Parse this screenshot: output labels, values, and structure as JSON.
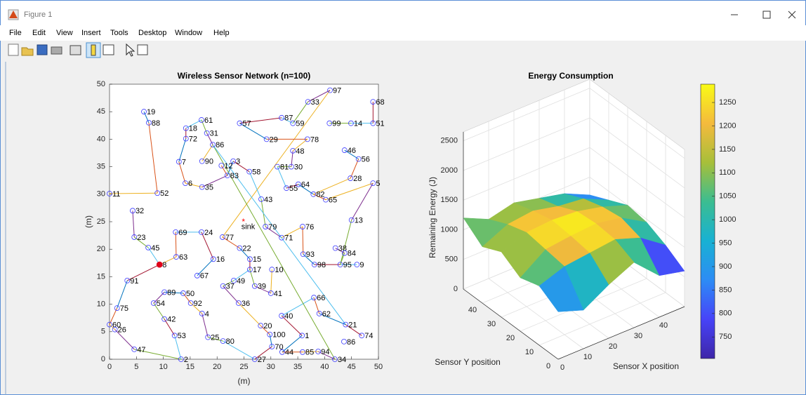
{
  "window": {
    "title": "Figure 1",
    "menu": [
      "File",
      "Edit",
      "View",
      "Insert",
      "Tools",
      "Desktop",
      "Window",
      "Help"
    ]
  },
  "chart_data": [
    {
      "type": "network",
      "title": "Wireless Sensor Network (n=100)",
      "xlabel": "(m)",
      "ylabel": "(m)",
      "xlim": [
        0,
        50
      ],
      "ylim": [
        0,
        50
      ],
      "xticks": [
        0,
        5,
        10,
        15,
        20,
        25,
        30,
        35,
        40,
        45,
        50
      ],
      "yticks": [
        0,
        5,
        10,
        15,
        20,
        25,
        30,
        35,
        40,
        45,
        50
      ],
      "node_color": "#3b3bff",
      "sink": {
        "label": "sink",
        "x": 24.9,
        "y": 24.9,
        "color": "#ff0000"
      },
      "nodes": [
        {
          "label": 19,
          "x": 6.4,
          "y": 45.0
        },
        {
          "label": 88,
          "x": 7.3,
          "y": 43.0
        },
        {
          "label": 61,
          "x": 17.1,
          "y": 43.5
        },
        {
          "label": 18,
          "x": 14.2,
          "y": 42.0
        },
        {
          "label": 31,
          "x": 18.1,
          "y": 41.1
        },
        {
          "label": 57,
          "x": 24.2,
          "y": 42.9
        },
        {
          "label": 87,
          "x": 32.0,
          "y": 43.9
        },
        {
          "label": 59,
          "x": 34.1,
          "y": 42.9
        },
        {
          "label": 33,
          "x": 36.9,
          "y": 46.8
        },
        {
          "label": 97,
          "x": 41.0,
          "y": 48.9
        },
        {
          "label": 68,
          "x": 49.0,
          "y": 46.8
        },
        {
          "label": 99,
          "x": 40.9,
          "y": 42.9
        },
        {
          "label": 14,
          "x": 44.9,
          "y": 42.9
        },
        {
          "label": 51,
          "x": 49.0,
          "y": 42.9
        },
        {
          "label": 72,
          "x": 14.2,
          "y": 40.1
        },
        {
          "label": 86,
          "x": 19.2,
          "y": 39.0
        },
        {
          "label": 29,
          "x": 29.2,
          "y": 40.0
        },
        {
          "label": 78,
          "x": 36.8,
          "y": 40.0
        },
        {
          "label": 48,
          "x": 34.1,
          "y": 37.9
        },
        {
          "label": 46,
          "x": 43.7,
          "y": 38.0
        },
        {
          "label": 56,
          "x": 46.3,
          "y": 36.4
        },
        {
          "label": 7,
          "x": 12.9,
          "y": 35.9
        },
        {
          "label": 90,
          "x": 17.2,
          "y": 36.0
        },
        {
          "label": 12,
          "x": 20.8,
          "y": 35.2
        },
        {
          "label": 3,
          "x": 23.0,
          "y": 36.0
        },
        {
          "label": 83,
          "x": 21.9,
          "y": 33.4
        },
        {
          "label": 58,
          "x": 26.0,
          "y": 34.1
        },
        {
          "label": 81,
          "x": 31.2,
          "y": 35.0
        },
        {
          "label": 30,
          "x": 33.8,
          "y": 35.0
        },
        {
          "label": 28,
          "x": 44.8,
          "y": 32.9
        },
        {
          "label": 5,
          "x": 49.0,
          "y": 32.0
        },
        {
          "label": 6,
          "x": 14.1,
          "y": 32.0
        },
        {
          "label": 35,
          "x": 17.2,
          "y": 31.3
        },
        {
          "label": 55,
          "x": 32.9,
          "y": 31.1
        },
        {
          "label": 64,
          "x": 35.1,
          "y": 31.8
        },
        {
          "label": 82,
          "x": 37.9,
          "y": 30.0
        },
        {
          "label": 65,
          "x": 40.2,
          "y": 29.0
        },
        {
          "label": 11,
          "x": 0,
          "y": 30.1
        },
        {
          "label": 52,
          "x": 8.9,
          "y": 30.2
        },
        {
          "label": 43,
          "x": 28.2,
          "y": 29.1
        },
        {
          "label": 32,
          "x": 4.3,
          "y": 27.0
        },
        {
          "label": 13,
          "x": 45.0,
          "y": 25.3
        },
        {
          "label": 79,
          "x": 29.0,
          "y": 24.1
        },
        {
          "label": 76,
          "x": 35.9,
          "y": 24.1
        },
        {
          "label": 69,
          "x": 12.3,
          "y": 23.1
        },
        {
          "label": 24,
          "x": 17.1,
          "y": 23.1
        },
        {
          "label": 77,
          "x": 21.0,
          "y": 22.2
        },
        {
          "label": 71,
          "x": 32.0,
          "y": 22.1
        },
        {
          "label": 23,
          "x": 4.6,
          "y": 22.2
        },
        {
          "label": 38,
          "x": 42.0,
          "y": 20.2
        },
        {
          "label": 84,
          "x": 43.7,
          "y": 19.3
        },
        {
          "label": 45,
          "x": 7.2,
          "y": 20.3
        },
        {
          "label": 22,
          "x": 24.2,
          "y": 20.2
        },
        {
          "label": 93,
          "x": 36.0,
          "y": 19.1
        },
        {
          "label": 63,
          "x": 12.4,
          "y": 18.6
        },
        {
          "label": 16,
          "x": 19.3,
          "y": 18.2
        },
        {
          "label": 15,
          "x": 26.1,
          "y": 18.2
        },
        {
          "label": 8,
          "x": 9.3,
          "y": 17.2,
          "color": "#e0001a"
        },
        {
          "label": 98,
          "x": 38.1,
          "y": 17.2
        },
        {
          "label": 95,
          "x": 42.9,
          "y": 17.2
        },
        {
          "label": 9,
          "x": 46.0,
          "y": 17.2
        },
        {
          "label": 17,
          "x": 26.1,
          "y": 16.3
        },
        {
          "label": 10,
          "x": 30.2,
          "y": 16.3
        },
        {
          "label": 67,
          "x": 16.3,
          "y": 15.2
        },
        {
          "label": 91,
          "x": 3.3,
          "y": 14.3
        },
        {
          "label": 49,
          "x": 23.1,
          "y": 14.3
        },
        {
          "label": 37,
          "x": 21.1,
          "y": 13.3
        },
        {
          "label": 39,
          "x": 27.0,
          "y": 13.3
        },
        {
          "label": 41,
          "x": 30.0,
          "y": 12.0
        },
        {
          "label": 89,
          "x": 10.2,
          "y": 12.2
        },
        {
          "label": 50,
          "x": 13.7,
          "y": 12.0
        },
        {
          "label": 66,
          "x": 38.0,
          "y": 11.2
        },
        {
          "label": 54,
          "x": 8.2,
          "y": 10.2
        },
        {
          "label": 92,
          "x": 15.1,
          "y": 10.2
        },
        {
          "label": 36,
          "x": 24.0,
          "y": 10.2
        },
        {
          "label": 75,
          "x": 1.4,
          "y": 9.3
        },
        {
          "label": 4,
          "x": 17.2,
          "y": 8.3
        },
        {
          "label": 40,
          "x": 32.0,
          "y": 7.9
        },
        {
          "label": 62,
          "x": 39.0,
          "y": 8.3
        },
        {
          "label": 42,
          "x": 10.2,
          "y": 7.3
        },
        {
          "label": 20,
          "x": 28.1,
          "y": 6.1
        },
        {
          "label": 21,
          "x": 43.9,
          "y": 6.3
        },
        {
          "label": 60,
          "x": 0,
          "y": 6.3
        },
        {
          "label": 26,
          "x": 1.0,
          "y": 5.4
        },
        {
          "label": 53,
          "x": 12.1,
          "y": 4.3
        },
        {
          "label": 100,
          "x": 29.8,
          "y": 4.5
        },
        {
          "label": 1,
          "x": 35.8,
          "y": 4.3
        },
        {
          "label": 74,
          "x": 46.9,
          "y": 4.3
        },
        {
          "label": 25,
          "x": 18.3,
          "y": 4.0
        },
        {
          "label": 80,
          "x": 21.1,
          "y": 3.3
        },
        {
          "label": 86,
          "x": 43.6,
          "y": 3.2
        },
        {
          "label": 70,
          "x": 30.2,
          "y": 2.3
        },
        {
          "label": 47,
          "x": 4.6,
          "y": 1.8
        },
        {
          "label": 44,
          "x": 32.1,
          "y": 1.3
        },
        {
          "label": 85,
          "x": 35.9,
          "y": 1.3
        },
        {
          "label": 94,
          "x": 38.8,
          "y": 1.4
        },
        {
          "label": 2,
          "x": 13.3,
          "y": 0
        },
        {
          "label": 27,
          "x": 27.0,
          "y": 0
        },
        {
          "label": 34,
          "x": 41.9,
          "y": 0
        }
      ],
      "edge_colors": [
        "#0072bd",
        "#d95319",
        "#edb120",
        "#7e2f8e",
        "#77ac30",
        "#4dbeee",
        "#a2142f"
      ],
      "edges": [
        [
          19,
          88
        ],
        [
          88,
          52
        ],
        [
          52,
          11
        ],
        [
          32,
          23
        ],
        [
          23,
          45
        ],
        [
          45,
          8
        ],
        [
          8,
          91
        ],
        [
          91,
          75
        ],
        [
          75,
          60
        ],
        [
          60,
          26
        ],
        [
          26,
          47
        ],
        [
          47,
          2
        ],
        [
          2,
          53
        ],
        [
          53,
          42
        ],
        [
          89,
          50
        ],
        [
          50,
          92
        ],
        [
          92,
          4
        ],
        [
          4,
          25
        ],
        [
          25,
          80
        ],
        [
          80,
          27
        ],
        [
          27,
          70
        ],
        [
          70,
          100
        ],
        [
          100,
          20
        ],
        [
          20,
          36
        ],
        [
          36,
          37
        ],
        [
          37,
          49
        ],
        [
          49,
          17
        ],
        [
          17,
          15
        ],
        [
          15,
          22
        ],
        [
          22,
          77
        ],
        [
          77,
          97
        ],
        [
          97,
          33
        ],
        [
          33,
          59
        ],
        [
          59,
          87
        ],
        [
          87,
          57
        ],
        [
          57,
          29
        ],
        [
          29,
          78
        ],
        [
          78,
          48
        ],
        [
          48,
          30
        ],
        [
          30,
          81
        ],
        [
          81,
          55
        ],
        [
          55,
          64
        ],
        [
          64,
          82
        ],
        [
          82,
          65
        ],
        [
          65,
          5
        ],
        [
          5,
          13
        ],
        [
          13,
          95
        ],
        [
          95,
          9
        ],
        [
          95,
          98
        ],
        [
          98,
          93
        ],
        [
          93,
          76
        ],
        [
          76,
          71
        ],
        [
          71,
          79
        ],
        [
          79,
          43
        ],
        [
          43,
          58
        ],
        [
          58,
          3
        ],
        [
          3,
          83
        ],
        [
          83,
          12
        ],
        [
          90,
          86
        ],
        [
          86,
          31
        ],
        [
          31,
          61
        ],
        [
          61,
          18
        ],
        [
          18,
          72
        ],
        [
          72,
          7
        ],
        [
          7,
          6
        ],
        [
          6,
          35
        ],
        [
          35,
          83
        ],
        [
          99,
          14
        ],
        [
          14,
          51
        ],
        [
          51,
          68
        ],
        [
          46,
          56
        ],
        [
          56,
          28
        ],
        [
          28,
          82
        ],
        [
          38,
          84
        ],
        [
          84,
          95
        ],
        [
          66,
          40
        ],
        [
          40,
          1
        ],
        [
          1,
          44
        ],
        [
          44,
          85
        ],
        [
          85,
          94
        ],
        [
          94,
          34
        ],
        [
          34,
          86
        ],
        [
          86,
          21
        ],
        [
          21,
          74
        ],
        [
          21,
          62
        ],
        [
          62,
          66
        ],
        [
          10,
          41
        ],
        [
          41,
          39
        ],
        [
          39,
          17
        ],
        [
          69,
          24
        ],
        [
          24,
          16
        ],
        [
          16,
          67
        ],
        [
          69,
          63
        ],
        [
          63,
          8
        ],
        [
          89,
          54
        ],
        [
          54,
          42
        ]
      ]
    },
    {
      "type": "surface",
      "title": "Energy Consumption",
      "xlabel": "Sensor X position",
      "ylabel": "Sensor Y position",
      "zlabel": "Remaining Energy (J)",
      "x": [
        0,
        10,
        20,
        30,
        40,
        50
      ],
      "y": [
        0,
        10,
        20,
        30,
        40,
        50
      ],
      "z": [
        [
          800,
          650,
          900,
          1100,
          700,
          600
        ],
        [
          1000,
          1150,
          1200,
          1250,
          1100,
          800
        ],
        [
          900,
          1200,
          1250,
          1280,
          1200,
          950
        ],
        [
          1100,
          1250,
          1280,
          1250,
          1150,
          1000
        ],
        [
          950,
          1150,
          1200,
          1100,
          1050,
          850
        ],
        [
          1200,
          1000,
          1100,
          1000,
          900,
          700
        ]
      ],
      "xlim": [
        0,
        50
      ],
      "ylim": [
        0,
        50
      ],
      "zlim": [
        0,
        2650
      ],
      "xticks": [
        0,
        10,
        20,
        30,
        40
      ],
      "yticks": [
        0,
        10,
        20,
        30,
        40
      ],
      "zticks": [
        0,
        500,
        1000,
        1500,
        2000,
        2500
      ],
      "colormap": [
        "#3e26a8",
        "#4743f8",
        "#2d8cf5",
        "#18b1d3",
        "#3bbd91",
        "#a7bf3a",
        "#f4ba3d",
        "#f9fb15"
      ],
      "clim": [
        704,
        1289
      ],
      "cticks": [
        750,
        800,
        850,
        900,
        950,
        1000,
        1050,
        1100,
        1150,
        1200,
        1250
      ]
    }
  ]
}
